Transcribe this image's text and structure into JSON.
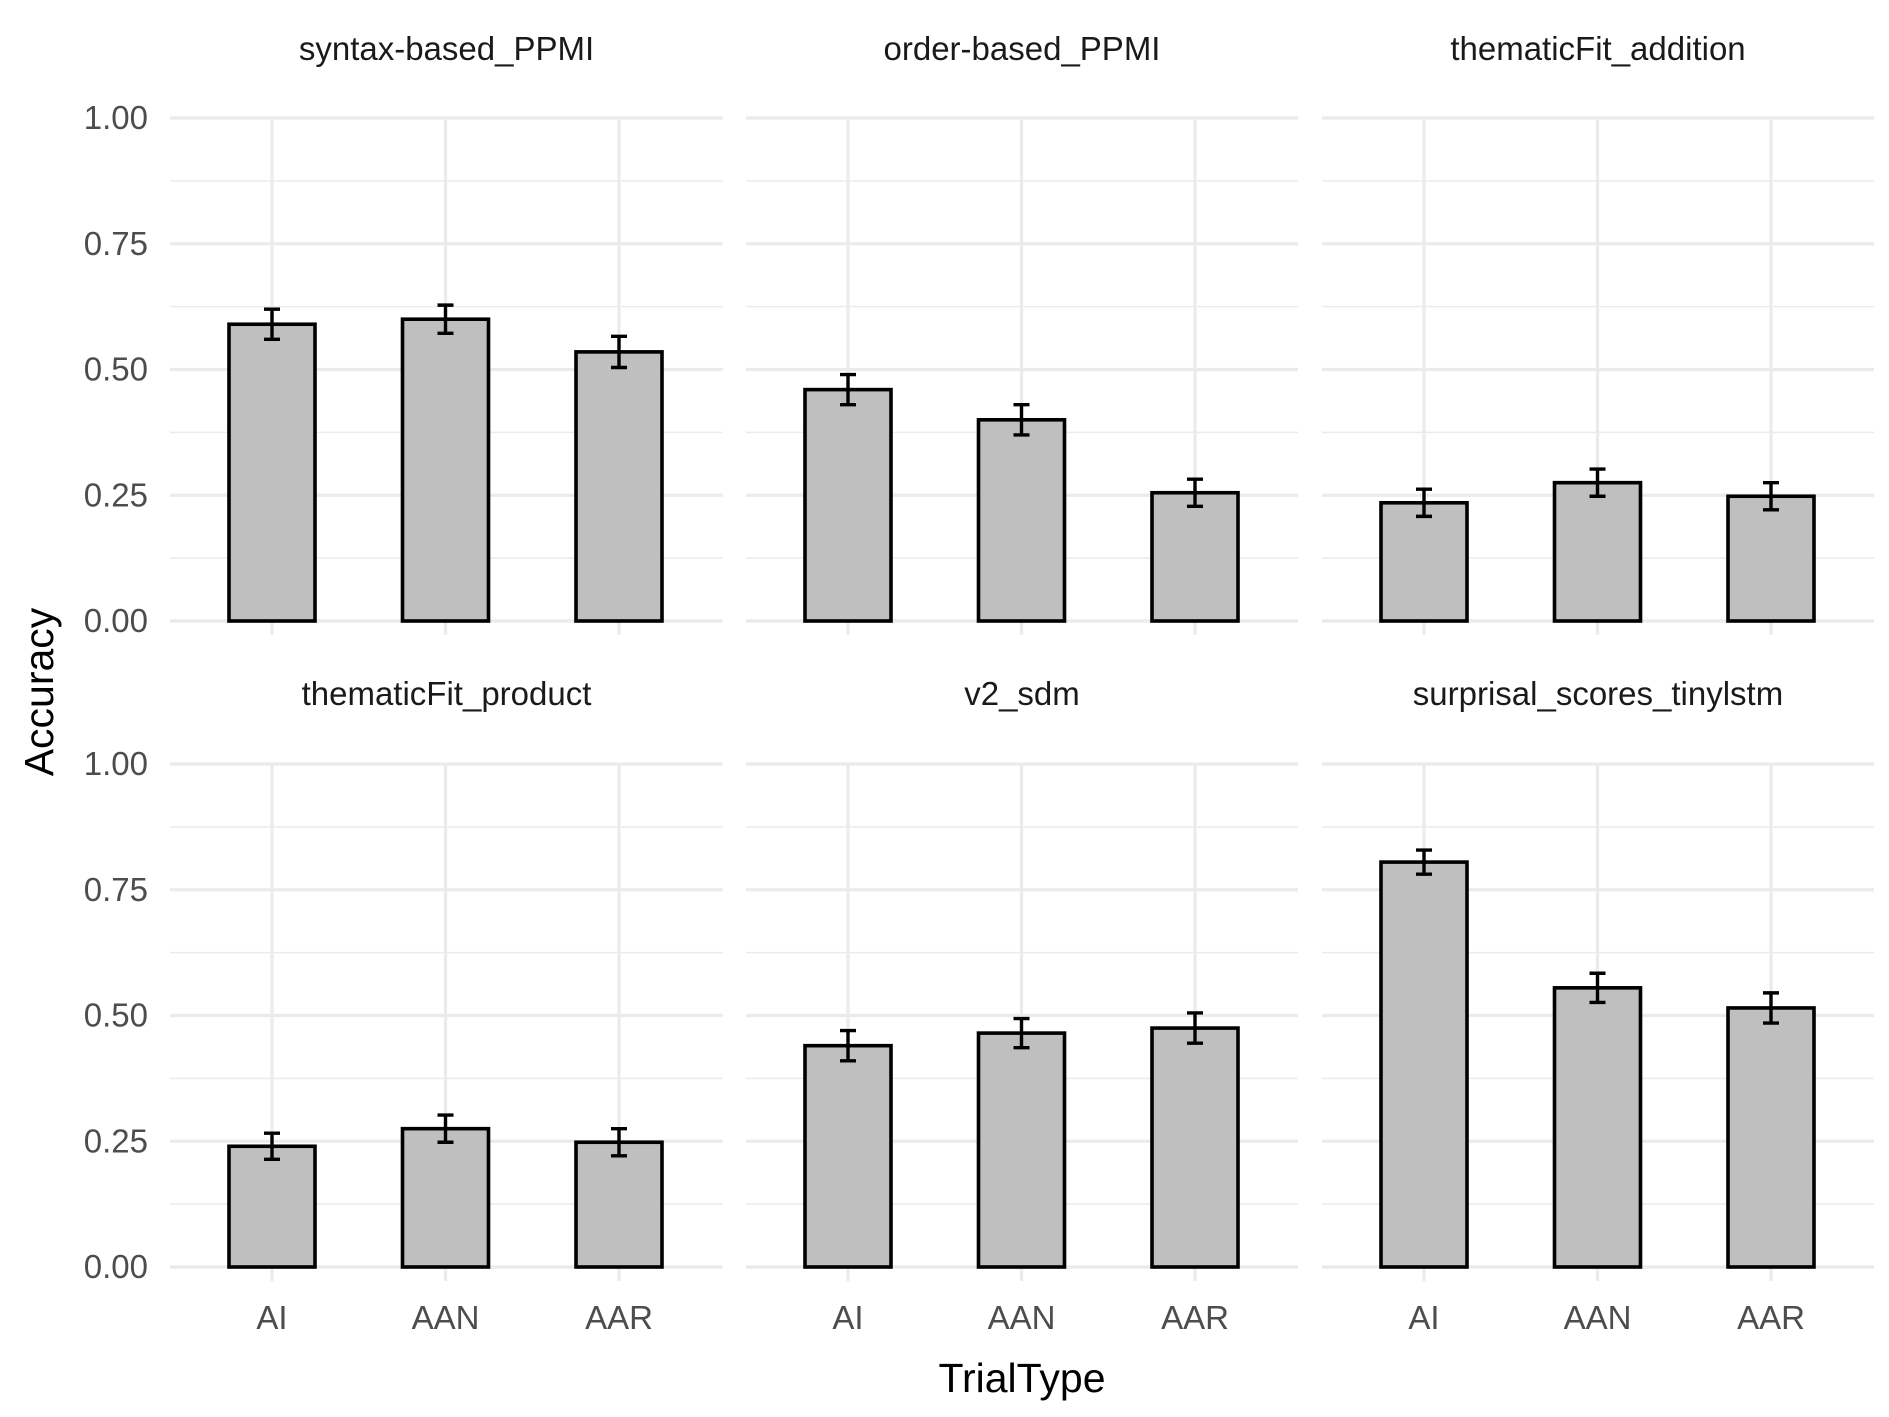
{
  "chart_data": {
    "type": "bar",
    "xlabel": "TrialType",
    "ylabel": "Accuracy",
    "ylim": [
      0,
      1
    ],
    "yticks": [
      "0.00",
      "0.25",
      "0.50",
      "0.75",
      "1.00"
    ],
    "categories": [
      "AI",
      "AAN",
      "AAR"
    ],
    "grid": true,
    "facets": [
      {
        "title": "syntax-based_PPMI",
        "values": [
          0.59,
          0.6,
          0.535
        ],
        "errors": [
          0.03,
          0.028,
          0.031
        ]
      },
      {
        "title": "order-based_PPMI",
        "values": [
          0.46,
          0.4,
          0.255
        ],
        "errors": [
          0.03,
          0.03,
          0.027
        ]
      },
      {
        "title": "thematicFit_addition",
        "values": [
          0.235,
          0.275,
          0.248
        ],
        "errors": [
          0.027,
          0.027,
          0.027
        ]
      },
      {
        "title": "thematicFit_product",
        "values": [
          0.24,
          0.275,
          0.248
        ],
        "errors": [
          0.026,
          0.027,
          0.027
        ]
      },
      {
        "title": "v2_sdm",
        "values": [
          0.44,
          0.465,
          0.475
        ],
        "errors": [
          0.03,
          0.029,
          0.03
        ]
      },
      {
        "title": "surprisal_scores_tinylstm",
        "values": [
          0.805,
          0.555,
          0.515
        ],
        "errors": [
          0.024,
          0.029,
          0.03
        ]
      }
    ]
  }
}
